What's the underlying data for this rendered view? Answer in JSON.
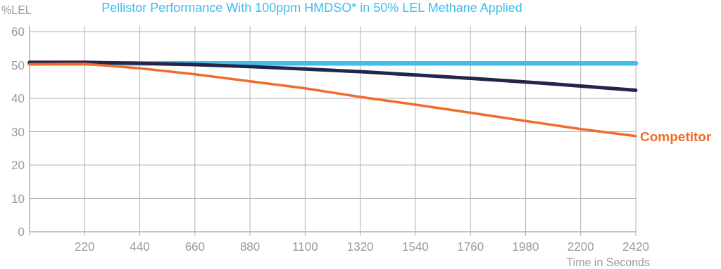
{
  "chart_data": {
    "type": "line",
    "title": "Pellistor Performance With 100ppm HMDSO* in 50% LEL Methane Applied",
    "xlabel": "Time in Seconds",
    "ylabel": "%LEL",
    "x": [
      0,
      220,
      440,
      660,
      880,
      1100,
      1320,
      1540,
      1760,
      1980,
      2200,
      2420
    ],
    "series": [
      {
        "color": "#41bdec",
        "values": [
          50.5,
          50.5,
          50.5,
          50.5,
          50.5,
          50.5,
          50.5,
          50.5,
          50.5,
          50.5,
          50.5,
          50.5
        ]
      },
      {
        "color": "#25244a",
        "values": [
          50.8,
          50.8,
          50.5,
          50.1,
          49.5,
          48.8,
          48.0,
          47.0,
          46.0,
          44.9,
          43.7,
          42.4
        ]
      },
      {
        "name": "Competitor",
        "color": "#ef6c2c",
        "values": [
          50.2,
          50.3,
          49.0,
          47.2,
          45.1,
          43.0,
          40.4,
          38.1,
          35.7,
          33.2,
          30.8,
          28.7
        ]
      }
    ],
    "xlim": [
      0,
      2420
    ],
    "xticks": [
      {
        "value": 0,
        "label": null
      },
      220,
      440,
      660,
      880,
      1100,
      1320,
      1540,
      1760,
      1980,
      2200,
      2420
    ],
    "ylim": [
      0,
      60
    ],
    "yticks": [
      0,
      10,
      20,
      30,
      40,
      50,
      60
    ],
    "grid": true,
    "legend": "right",
    "marker": "none",
    "line_style": "solid"
  }
}
